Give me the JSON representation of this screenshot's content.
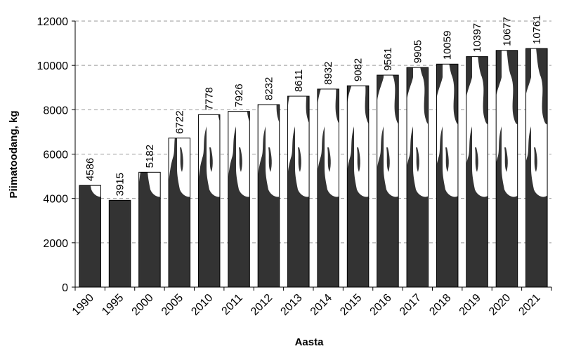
{
  "chart_data": {
    "type": "bar",
    "title": "",
    "xlabel": "Aasta",
    "ylabel": "Piimatoodang, kg",
    "ylim": [
      0,
      12000
    ],
    "yticks": [
      0,
      2000,
      4000,
      6000,
      8000,
      10000,
      12000
    ],
    "grid": true,
    "legend": "none",
    "categories": [
      "1990",
      "1995",
      "2000",
      "2005",
      "2010",
      "2011",
      "2012",
      "2013",
      "2014",
      "2015",
      "2016",
      "2017",
      "2018",
      "2019",
      "2020",
      "2021"
    ],
    "values": [
      4586,
      3915,
      5182,
      6722,
      7778,
      7926,
      8232,
      8611,
      8932,
      9082,
      9561,
      9905,
      10059,
      10397,
      10677,
      10761
    ],
    "colors": {
      "bar_dark": "#333333",
      "bar_light": "#ffffff",
      "grid": "#999999",
      "axis": "#000000"
    }
  }
}
